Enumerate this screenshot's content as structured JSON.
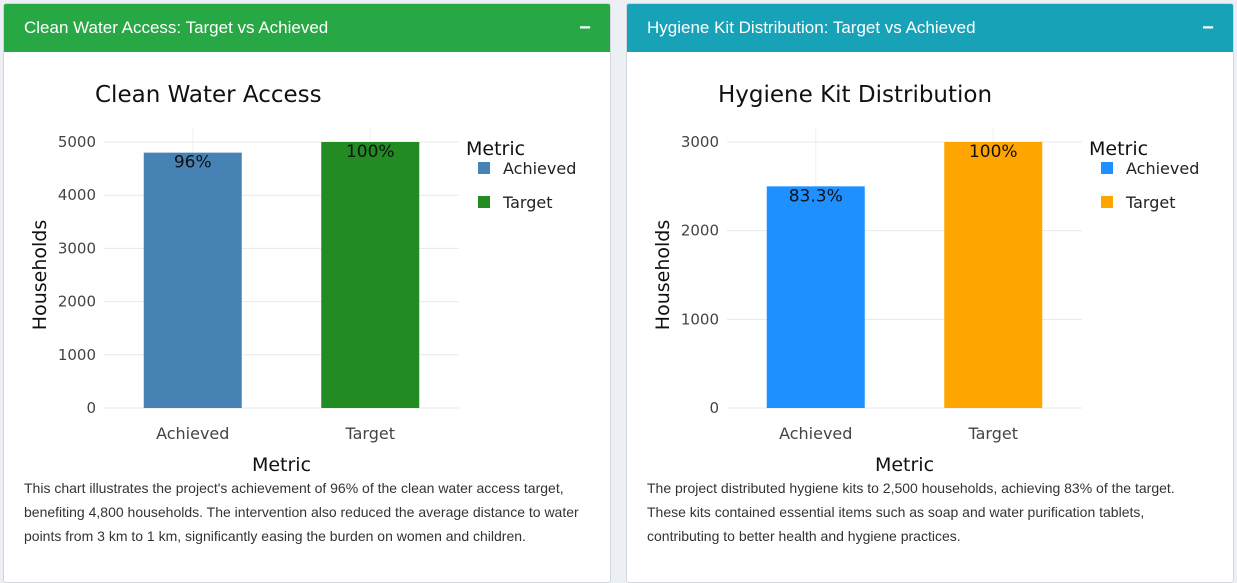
{
  "panels": [
    {
      "header_title": "Clean Water Access: Target vs Achieved",
      "header_color": "#28a745",
      "collapse_label": "−",
      "description": "This chart illustrates the project's achievement of 96% of the clean water access target, benefiting 4,800 households. The intervention also reduced the average distance to water points from 3 km to 1 km, significantly easing the burden on women and children."
    },
    {
      "header_title": "Hygiene Kit Distribution: Target vs Achieved",
      "header_color": "#17a2b8",
      "collapse_label": "−",
      "description": "The project distributed hygiene kits to 2,500 households, achieving 83% of the target. These kits contained essential items such as soap and water purification tablets, contributing to better health and hygiene practices."
    }
  ],
  "chart_data": [
    {
      "type": "bar",
      "title": "Clean Water Access",
      "xlabel": "Metric",
      "ylabel": "Households",
      "categories": [
        "Achieved",
        "Target"
      ],
      "values": [
        4800,
        5000
      ],
      "bar_labels": [
        "96%",
        "100%"
      ],
      "colors": [
        "#4682b4",
        "#228b22"
      ],
      "ylim": [
        0,
        5000
      ],
      "yticks": [
        0,
        1000,
        2000,
        3000,
        4000,
        5000
      ],
      "legend_title": "Metric",
      "legend": [
        "Achieved",
        "Target"
      ],
      "legend_position": "right",
      "grid": true
    },
    {
      "type": "bar",
      "title": "Hygiene Kit Distribution",
      "xlabel": "Metric",
      "ylabel": "Households",
      "categories": [
        "Achieved",
        "Target"
      ],
      "values": [
        2500,
        3000
      ],
      "bar_labels": [
        "83.3%",
        "100%"
      ],
      "colors": [
        "#1e90ff",
        "#ffa500"
      ],
      "ylim": [
        0,
        3000
      ],
      "yticks": [
        0,
        1000,
        2000,
        3000
      ],
      "legend_title": "Metric",
      "legend": [
        "Achieved",
        "Target"
      ],
      "legend_position": "right",
      "grid": true
    }
  ]
}
